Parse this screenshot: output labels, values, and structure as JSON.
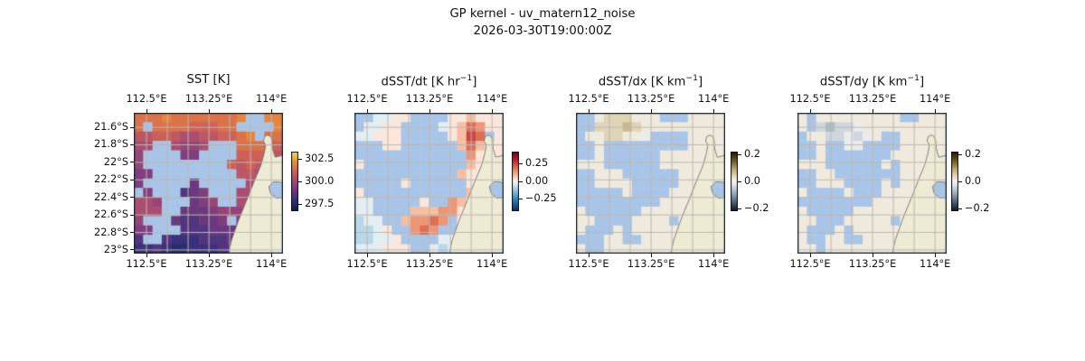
{
  "figure": {
    "title_line1": "GP kernel - uv_matern12_noise",
    "title_line2": "2026-03-30T19:00:00Z"
  },
  "colors": {
    "background": "#ffffff",
    "text": "#111111",
    "masked_ocean_blue": "#a8c5e8",
    "land": "#edebd3",
    "coastline": "#757575",
    "graticule": "#bdb8b0",
    "panel_border": "#16222e"
  },
  "geo": {
    "lon_tick_labels": [
      "112.5°E",
      "113.25°E",
      "114°E"
    ],
    "lon_tick_pos": [
      0.085,
      0.5035,
      0.922
    ],
    "lat_tick_labels": [
      "21.6°S",
      "21.8°S",
      "22°S",
      "22.2°S",
      "22.4°S",
      "22.6°S",
      "22.8°S",
      "23°S"
    ],
    "lat_tick_pos": [
      0.103,
      0.2274,
      0.3519,
      0.4763,
      0.6007,
      0.7251,
      0.8496,
      0.974
    ],
    "grid_x": [
      0.085,
      0.2245,
      0.364,
      0.5035,
      0.643,
      0.7825,
      0.922
    ],
    "grid_y": [
      0.103,
      0.2274,
      0.3519,
      0.4763,
      0.6007,
      0.7251,
      0.8496,
      0.974
    ],
    "land_polygon": [
      [
        0.63,
        1.03
      ],
      [
        0.655,
        0.905
      ],
      [
        0.705,
        0.755
      ],
      [
        0.765,
        0.6
      ],
      [
        0.806,
        0.49
      ],
      [
        0.853,
        0.37
      ],
      [
        0.875,
        0.285
      ],
      [
        0.884,
        0.228
      ],
      [
        0.869,
        0.2
      ],
      [
        0.876,
        0.17
      ],
      [
        0.896,
        0.158
      ],
      [
        0.916,
        0.167
      ],
      [
        0.926,
        0.196
      ],
      [
        0.93,
        0.255
      ],
      [
        0.947,
        0.315
      ],
      [
        1.03,
        0.295
      ],
      [
        1.03,
        1.03
      ]
    ],
    "gulf_bay_polygon": [
      [
        0.905,
        0.525
      ],
      [
        0.935,
        0.49
      ],
      [
        0.97,
        0.49
      ],
      [
        1.03,
        0.505
      ],
      [
        1.03,
        0.6
      ],
      [
        0.955,
        0.605
      ],
      [
        0.917,
        0.575
      ]
    ]
  },
  "colormaps": {
    "thermal": [
      [
        0,
        "#0a2342"
      ],
      [
        0.18,
        "#33307c"
      ],
      [
        0.36,
        "#743a80"
      ],
      [
        0.52,
        "#a84b72"
      ],
      [
        0.68,
        "#d06355"
      ],
      [
        0.84,
        "#ee8f35"
      ],
      [
        1,
        "#ede24f"
      ]
    ],
    "rdbu_r": [
      [
        0,
        "#053061"
      ],
      [
        0.1,
        "#1b5899"
      ],
      [
        0.22,
        "#3f8ec0"
      ],
      [
        0.34,
        "#8fc2dc"
      ],
      [
        0.44,
        "#d3e6f0"
      ],
      [
        0.5,
        "#f7f7f7"
      ],
      [
        0.54,
        "#fbe3d4"
      ],
      [
        0.64,
        "#f4a582"
      ],
      [
        0.76,
        "#d6604d"
      ],
      [
        0.88,
        "#b2182b"
      ],
      [
        1,
        "#67001f"
      ]
    ],
    "tanslate": [
      [
        0,
        "#0c1722"
      ],
      [
        0.15,
        "#4c6377"
      ],
      [
        0.3,
        "#9aadbc"
      ],
      [
        0.44,
        "#e3e8ea"
      ],
      [
        0.5,
        "#f3f2ee"
      ],
      [
        0.56,
        "#ece4cf"
      ],
      [
        0.7,
        "#c2ab76"
      ],
      [
        0.85,
        "#6d5822"
      ],
      [
        1,
        "#201804"
      ]
    ]
  },
  "chart_data": [
    {
      "id": "sst",
      "type": "heatmap",
      "title_html": "SST [K]",
      "colormap": "thermal",
      "vmin": 296.7,
      "vmax": 303.3,
      "colorbar_ticks": [
        {
          "label": "302.5",
          "value": 302.5
        },
        {
          "label": "300.0",
          "value": 300.0
        },
        {
          "label": "297.5",
          "value": 297.5
        }
      ],
      "grid_encoding": "hex digit 0-15 maps linearly vmin..vmax; mask 1 = missing data (blue)",
      "value_grid": [
        "bbbcbbbbbbbccbcc",
        "bbbbbbaaabbbcccc",
        "99aa98899aabccbb",
        "8889877889abbbaa",
        "7788766789aaaa99",
        "7777666678a9a988",
        "6677655678999888",
        "6666555678898877",
        "6666545678888777",
        "8877655677887766",
        "8887655567777666",
        "7776544556666555",
        "6665444455565544",
        "4554333444554444",
        "3343223334444333"
      ],
      "mask_grid": [
        "0000000000001100",
        "0100000000011110",
        "0000000000000100",
        "0011000011100000",
        "0111100111100000",
        "0111111111000000",
        "0011111111100000",
        "0111110111110000",
        "1011100011100000",
        "0001110001100000",
        "0001100000000000",
        "0111000000100000",
        "0011100000000000",
        "0110000000000000",
        "0000000000000000"
      ]
    },
    {
      "id": "dsst_dt",
      "type": "heatmap",
      "title_html": "dSST/dt [K hr<sup>−1</sup>]",
      "colormap": "rdbu_r",
      "vmin": -0.43,
      "vmax": 0.43,
      "colorbar_ticks": [
        {
          "label": "0.25",
          "value": 0.25
        },
        {
          "label": "0.00",
          "value": 0.0
        },
        {
          "label": "−0.25",
          "value": -0.25
        }
      ],
      "grid_encoding": "hex digit 0-15 maps linearly vmin..vmax; mask 1 = missing data (blue)",
      "value_grid": [
        "6677887667889888",
        "677888656789ba88",
        "778887656789cb98",
        "788888777889b988",
        "888888888889a888",
        "8888888888899888",
        "7888888888998888",
        "88888888889a8888",
        "8888888889aa9888",
        "7788888899a98888",
        "778888999aa88888",
        "677889aaba988888",
        "667889aba9888888",
        "6677889987788888",
        "7778888876788888"
      ],
      "mask_grid": [
        "1100001111000000",
        "1000011110000000",
        "0000011111000010",
        "1110011111100000",
        "1111111111110000",
        "0111111111110000",
        "1111111111100000",
        "1111101111110000",
        "0111111111110000",
        "0011111011000000",
        "0011110000000000",
        "0001100000100000",
        "0000110001100000",
        "0000011110000000",
        "0000001100000000"
      ]
    },
    {
      "id": "dsst_dx",
      "type": "heatmap",
      "title_html": "dSST/dx [K km<sup>−1</sup>]",
      "colormap": "tanslate",
      "vmin": -0.22,
      "vmax": 0.22,
      "colorbar_ticks": [
        {
          "label": "0.2",
          "value": 0.2
        },
        {
          "label": "0.0",
          "value": 0.0
        },
        {
          "label": "−0.2",
          "value": -0.2
        }
      ],
      "grid_encoding": "hex digit 0-15 maps linearly vmin..vmax; mask 1 = missing data (blue)",
      "value_grid": [
        "8889998888788888",
        "88999a9888888888",
        "8889988777888888",
        "8888888887788888",
        "8888888888888888",
        "8888888888888888",
        "8888888888888888",
        "8888888888888888",
        "8888888888888888",
        "8888888888888888",
        "8888888888888888",
        "8888888888888888",
        "8888888888888888",
        "8888888888888888",
        "8888888888888888"
      ],
      "mask_grid": [
        "1100000001110000",
        "1100000000000000",
        "1000000011110000",
        "1101111111110000",
        "1101111110000000",
        "0001111110000000",
        "1100011111100000",
        "1100001111100000",
        "1111101111000000",
        "1111111110000000",
        "0111111000000000",
        "0011110000100000",
        "0111010000000000",
        "1110011000000000",
        "0110000000000000"
      ]
    },
    {
      "id": "dsst_dy",
      "type": "heatmap",
      "title_html": "dSST/dy [K km<sup>−1</sup>]",
      "colormap": "tanslate",
      "vmin": -0.22,
      "vmax": 0.22,
      "colorbar_ticks": [
        {
          "label": "0.2",
          "value": 0.2
        },
        {
          "label": "0.0",
          "value": 0.0
        },
        {
          "label": "−0.2",
          "value": -0.2
        }
      ],
      "grid_encoding": "hex digit 0-15 maps linearly vmin..vmax; mask 1 = missing data (blue)",
      "value_grid": [
        "8888888888888888",
        "8665667888888888",
        "8886676788888888",
        "8888877888888888",
        "8888888888888888",
        "8888888888888888",
        "8888888888888888",
        "8888888888888888",
        "8888888888888888",
        "8888888888888888",
        "8888888888888888",
        "8888888888888888",
        "8888888888888888",
        "8888888888888888",
        "8888888888888888"
      ],
      "mask_grid": [
        "0100000000011000",
        "0100000000000000",
        "1000000001100000",
        "1101100111100000",
        "1101111111000000",
        "0001111110100000",
        "1100111111100000",
        "1100011110100000",
        "0111101110000000",
        "1111111100000000",
        "0111110000000000",
        "0011100000100000",
        "0111010000000000",
        "0110011000000000",
        "0010000000000000"
      ]
    }
  ]
}
